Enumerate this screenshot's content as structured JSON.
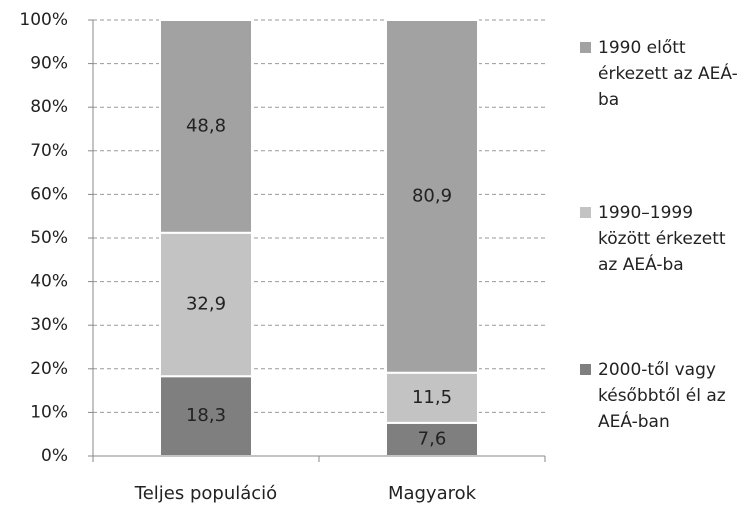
{
  "chart_data": {
    "type": "stacked_bar",
    "categories": [
      "Teljes populáció",
      "Magyarok"
    ],
    "series": [
      {
        "name": "2000-től vagy későbbtől él az AEÁ-ban",
        "color": "#7f7f7f",
        "values": [
          18.3,
          7.6
        ],
        "value_labels": [
          "18,3",
          "7,6"
        ]
      },
      {
        "name": "1990–1999 között érkezett az AEÁ-ba",
        "color": "#c3c3c3",
        "values": [
          32.9,
          11.5
        ],
        "value_labels": [
          "32,9",
          "11,5"
        ]
      },
      {
        "name": "1990 előtt érkezett az AEÁ-ba",
        "color": "#a2a2a2",
        "values": [
          48.8,
          80.9
        ],
        "value_labels": [
          "48,8",
          "80,9"
        ]
      }
    ],
    "ylim": [
      0,
      100
    ],
    "yticks": [
      {
        "value": 0,
        "label": "0%"
      },
      {
        "value": 10,
        "label": "10%"
      },
      {
        "value": 20,
        "label": "20%"
      },
      {
        "value": 30,
        "label": "30%"
      },
      {
        "value": 40,
        "label": "40%"
      },
      {
        "value": 50,
        "label": "50%"
      },
      {
        "value": 60,
        "label": "60%"
      },
      {
        "value": 70,
        "label": "70%"
      },
      {
        "value": 80,
        "label": "80%"
      },
      {
        "value": 90,
        "label": "90%"
      },
      {
        "value": 100,
        "label": "100%"
      }
    ],
    "grid": true,
    "legend": "right"
  }
}
